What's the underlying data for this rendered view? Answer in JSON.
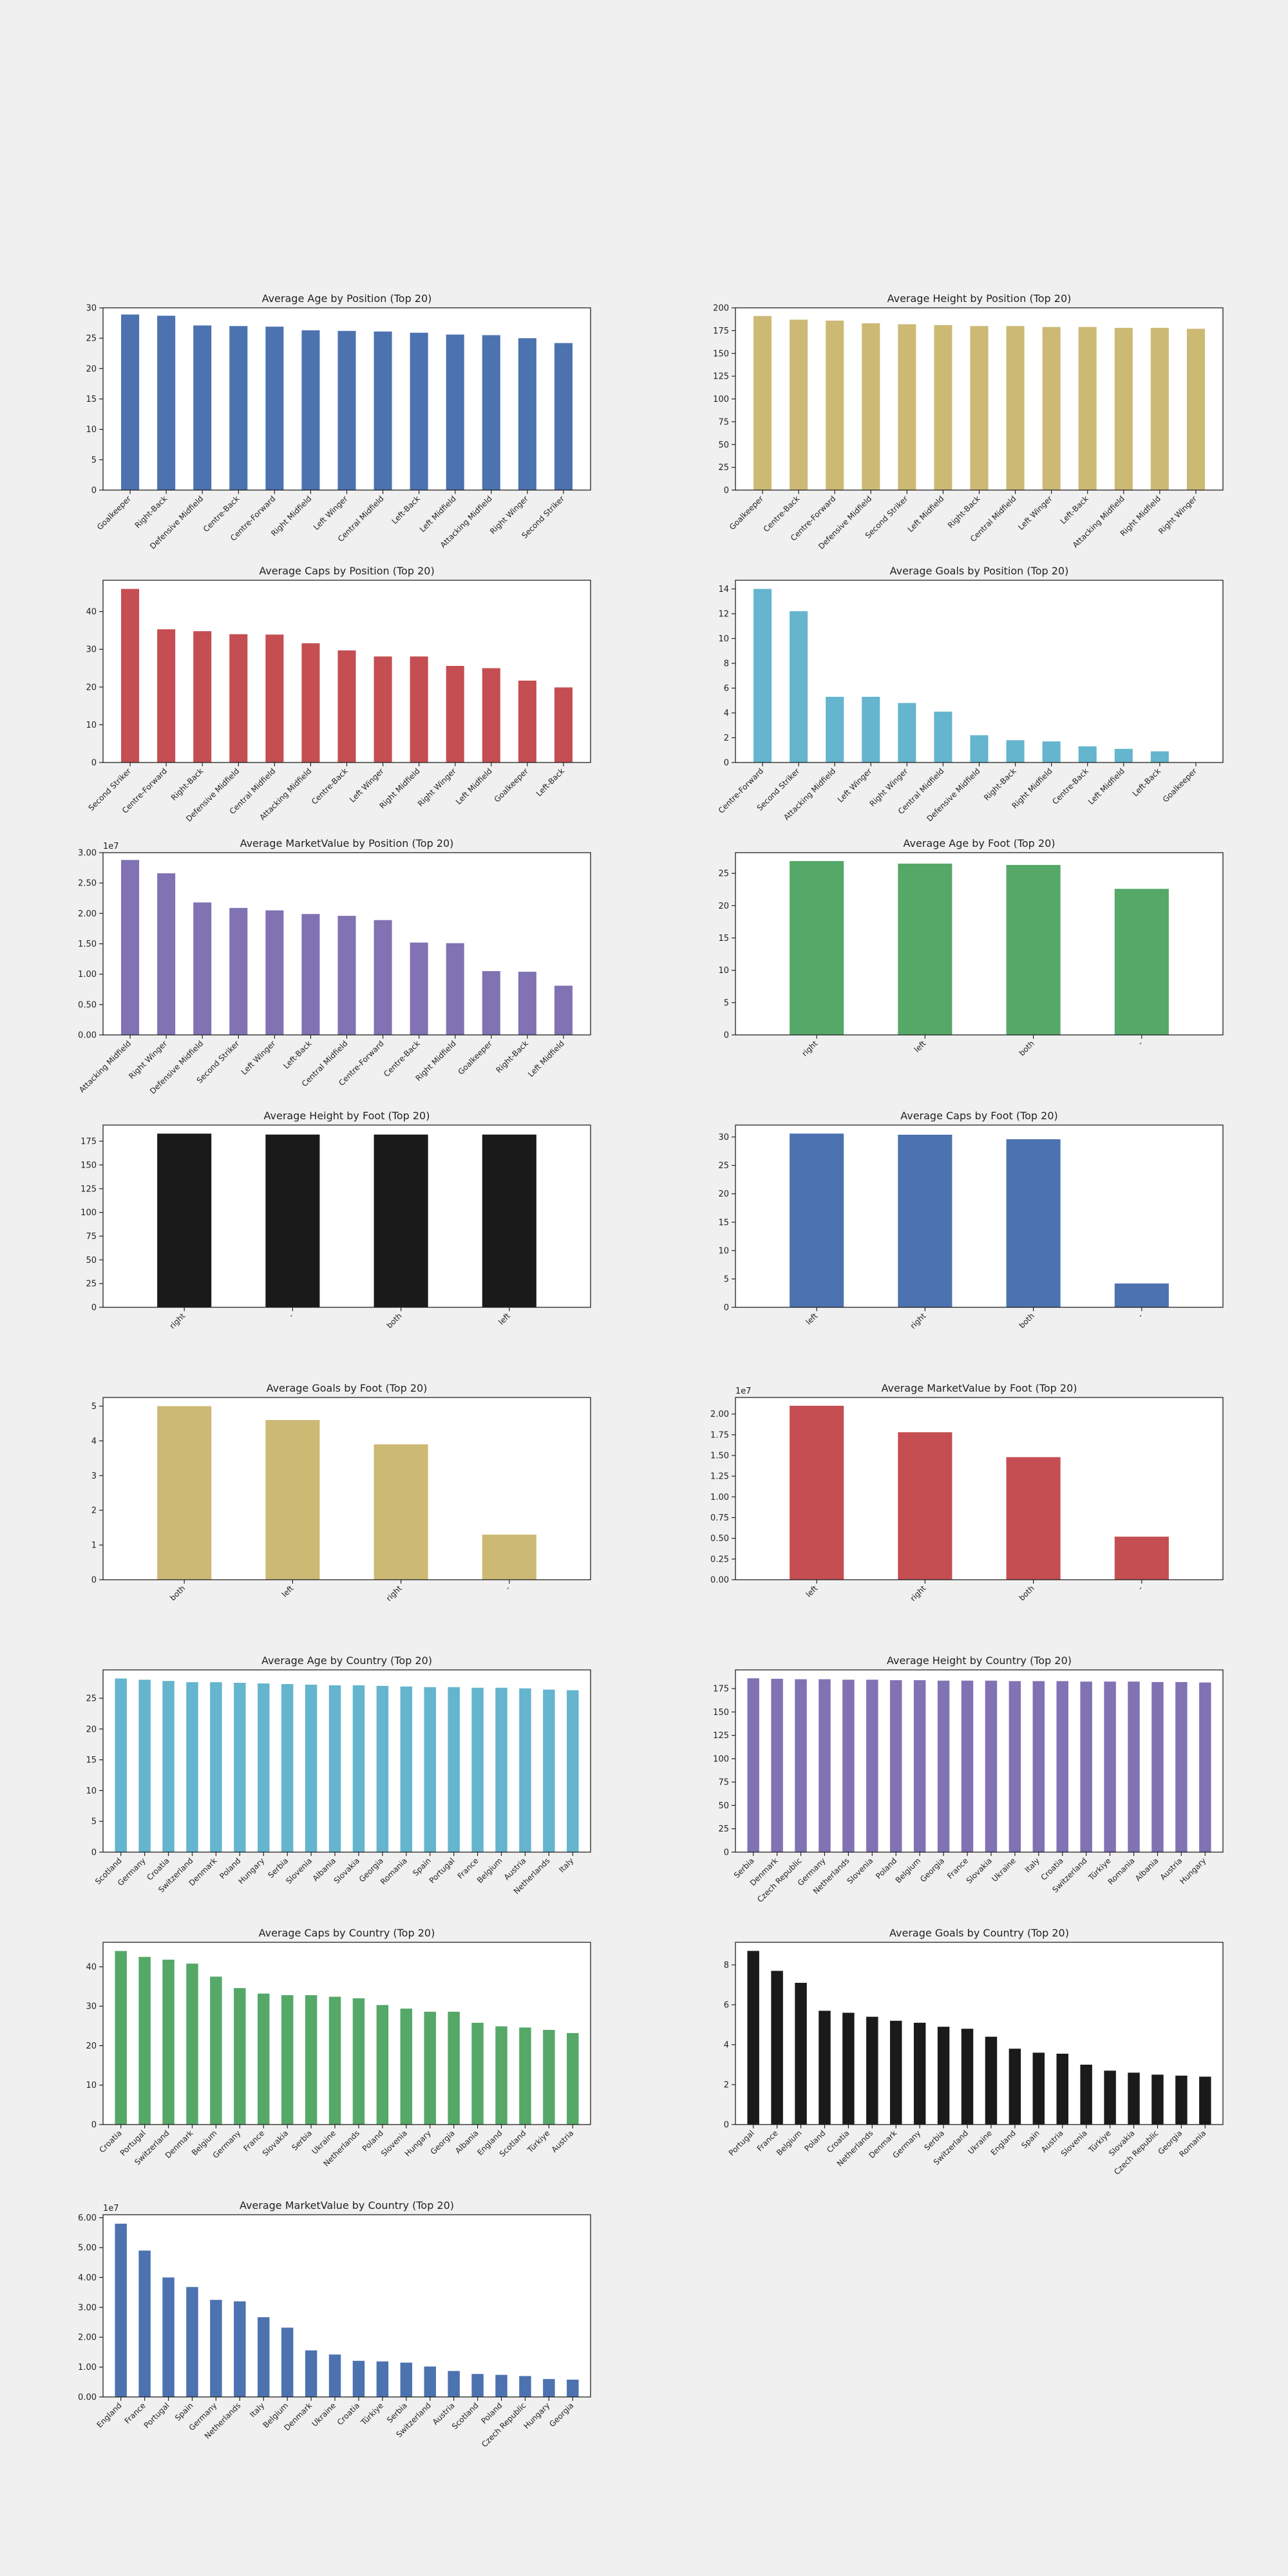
{
  "colors": {
    "blue": "#4c72b0",
    "gold": "#ccb974",
    "red": "#c44e52",
    "cyan": "#64b5cd",
    "purple": "#8172b3",
    "green": "#55a868",
    "black": "#1a1a1a"
  },
  "chart_data": [
    {
      "type": "bar",
      "title": "Average Age by Position (Top 20)",
      "categories": [
        "Goalkeeper",
        "Right-Back",
        "Defensive Midfield",
        "Centre-Back",
        "Centre-Forward",
        "Right Midfield",
        "Left Winger",
        "Central Midfield",
        "Left-Back",
        "Left Midfield",
        "Attacking Midfield",
        "Right Winger",
        "Second Striker"
      ],
      "values": [
        28.9,
        28.7,
        27.1,
        27.0,
        26.9,
        26.3,
        26.2,
        26.1,
        25.9,
        25.6,
        25.5,
        25.0,
        24.2
      ],
      "ylim": [
        0,
        30
      ],
      "yticks": [
        0,
        5,
        10,
        15,
        20,
        25,
        30
      ],
      "yoffset": "",
      "color": "blue"
    },
    {
      "type": "bar",
      "title": "Average Height by Position (Top 20)",
      "categories": [
        "Goalkeeper",
        "Centre-Back",
        "Centre-Forward",
        "Defensive Midfield",
        "Second Striker",
        "Left Midfield",
        "Right-Back",
        "Central Midfield",
        "Left Winger",
        "Left-Back",
        "Attacking Midfield",
        "Right Midfield",
        "Right Winger"
      ],
      "values": [
        191,
        187,
        186,
        183,
        182,
        181,
        180,
        180,
        179,
        179,
        178,
        178,
        177
      ],
      "ylim": [
        0,
        200
      ],
      "yticks": [
        0,
        25,
        50,
        75,
        100,
        125,
        150,
        175,
        200
      ],
      "yoffset": "",
      "color": "gold"
    },
    {
      "type": "bar",
      "title": "Average Caps by Position (Top 20)",
      "categories": [
        "Second Striker",
        "Centre-Forward",
        "Right-Back",
        "Defensive Midfield",
        "Central Midfield",
        "Attacking Midfield",
        "Centre-Back",
        "Left Winger",
        "Right Midfield",
        "Right Winger",
        "Left Midfield",
        "Goalkeeper",
        "Left-Back"
      ],
      "values": [
        46,
        35.3,
        34.8,
        34,
        33.9,
        31.6,
        29.7,
        28.1,
        28.1,
        25.6,
        25,
        21.7,
        19.9
      ],
      "ylim": [
        0,
        48.3
      ],
      "yticks": [
        0,
        10,
        20,
        30,
        40
      ],
      "yoffset": "",
      "color": "red"
    },
    {
      "type": "bar",
      "title": "Average Goals by Position (Top 20)",
      "categories": [
        "Centre-Forward",
        "Second Striker",
        "Attacking Midfield",
        "Left Winger",
        "Right Winger",
        "Central Midfield",
        "Defensive Midfield",
        "Right-Back",
        "Right Midfield",
        "Centre-Back",
        "Left Midfield",
        "Left-Back",
        "Goalkeeper"
      ],
      "values": [
        14,
        12.2,
        5.3,
        5.3,
        4.8,
        4.1,
        2.2,
        1.8,
        1.7,
        1.3,
        1.1,
        0.9,
        0
      ],
      "ylim": [
        0,
        14.7
      ],
      "yticks": [
        0,
        2,
        4,
        6,
        8,
        10,
        12,
        14
      ],
      "yoffset": "",
      "color": "cyan"
    },
    {
      "type": "bar",
      "title": "Average MarketValue by Position (Top 20)",
      "categories": [
        "Attacking Midfield",
        "Right Winger",
        "Defensive Midfield",
        "Second Striker",
        "Left Winger",
        "Left-Back",
        "Central Midfield",
        "Centre-Forward",
        "Centre-Back",
        "Right Midfield",
        "Goalkeeper",
        "Right-Back",
        "Left Midfield"
      ],
      "values": [
        28800000,
        26600000,
        21800000,
        20900000,
        20500000,
        19900000,
        19600000,
        18900000,
        15200000,
        15100000,
        10500000,
        10400000,
        8100000
      ],
      "ylim": [
        0,
        30000000
      ],
      "yticks": [
        0,
        5000000,
        10000000,
        15000000,
        20000000,
        25000000,
        30000000
      ],
      "yoffset": "1e7",
      "color": "purple"
    },
    {
      "type": "bar",
      "title": "Average Age by Foot (Top 20)",
      "categories": [
        "right",
        "left",
        "both",
        "-"
      ],
      "values": [
        26.9,
        26.5,
        26.3,
        22.6
      ],
      "ylim": [
        0,
        28.2
      ],
      "yticks": [
        0,
        5,
        10,
        15,
        20,
        25
      ],
      "yoffset": "",
      "color": "green"
    },
    {
      "type": "bar",
      "title": "Average Height by Foot (Top 20)",
      "categories": [
        "right",
        "-",
        "both",
        "left"
      ],
      "values": [
        183,
        182,
        182,
        182
      ],
      "ylim": [
        0,
        192
      ],
      "yticks": [
        0,
        25,
        50,
        75,
        100,
        125,
        150,
        175
      ],
      "yoffset": "",
      "color": "black"
    },
    {
      "type": "bar",
      "title": "Average Caps by Foot (Top 20)",
      "categories": [
        "left",
        "right",
        "both",
        "-"
      ],
      "values": [
        30.6,
        30.4,
        29.6,
        4.2
      ],
      "ylim": [
        0,
        32.1
      ],
      "yticks": [
        0,
        5,
        10,
        15,
        20,
        25,
        30
      ],
      "yoffset": "",
      "color": "blue"
    },
    {
      "type": "bar",
      "title": "Average Goals by Foot (Top 20)",
      "categories": [
        "both",
        "left",
        "right",
        "-"
      ],
      "values": [
        5.0,
        4.6,
        3.9,
        1.3
      ],
      "ylim": [
        0,
        5.25
      ],
      "yticks": [
        0,
        1,
        2,
        3,
        4,
        5
      ],
      "yoffset": "",
      "color": "gold"
    },
    {
      "type": "bar",
      "title": "Average MarketValue by Foot (Top 20)",
      "categories": [
        "left",
        "right",
        "both",
        "-"
      ],
      "values": [
        21000000,
        17800000,
        14800000,
        5200000
      ],
      "ylim": [
        0,
        22000000
      ],
      "yticks": [
        0,
        2500000,
        5000000,
        7500000,
        10000000,
        12500000,
        15000000,
        17500000,
        20000000
      ],
      "yoffset": "1e7",
      "color": "red"
    },
    {
      "type": "bar",
      "title": "Average Age by Country (Top 20)",
      "categories": [
        "Scotland",
        "Germany",
        "Croatia",
        "Switzerland",
        "Denmark",
        "Poland",
        "Hungary",
        "Serbia",
        "Slovenia",
        "Albania",
        "Slovakia",
        "Georgia",
        "Romania",
        "Spain",
        "Portugal",
        "France",
        "Belgium",
        "Austria",
        "Netherlands",
        "Italy"
      ],
      "values": [
        28.2,
        28.0,
        27.8,
        27.6,
        27.6,
        27.5,
        27.4,
        27.3,
        27.2,
        27.1,
        27.1,
        27.0,
        26.9,
        26.8,
        26.8,
        26.7,
        26.7,
        26.6,
        26.4,
        26.3
      ],
      "ylim": [
        0,
        29.6
      ],
      "yticks": [
        0,
        5,
        10,
        15,
        20,
        25
      ],
      "yoffset": "",
      "color": "cyan"
    },
    {
      "type": "bar",
      "title": "Average Height by Country (Top 20)",
      "categories": [
        "Serbia",
        "Denmark",
        "Czech Republic",
        "Germany",
        "Netherlands",
        "Slovenia",
        "Poland",
        "Belgium",
        "Georgia",
        "France",
        "Slovakia",
        "Ukraine",
        "Italy",
        "Croatia",
        "Switzerland",
        "Türkiye",
        "Romania",
        "Albania",
        "Austria",
        "Hungary"
      ],
      "values": [
        186,
        185.5,
        185,
        185,
        184.5,
        184.5,
        184,
        184,
        183.5,
        183.5,
        183.5,
        183,
        183,
        183,
        182.5,
        182.5,
        182.5,
        182,
        182,
        181.5
      ],
      "ylim": [
        0,
        195
      ],
      "yticks": [
        0,
        25,
        50,
        75,
        100,
        125,
        150,
        175
      ],
      "yoffset": "",
      "color": "purple"
    },
    {
      "type": "bar",
      "title": "Average Caps by Country (Top 20)",
      "categories": [
        "Croatia",
        "Portugal",
        "Switzerland",
        "Denmark",
        "Belgium",
        "Germany",
        "France",
        "Slovakia",
        "Serbia",
        "Ukraine",
        "Netherlands",
        "Poland",
        "Slovenia",
        "Hungary",
        "Georgia",
        "Albania",
        "England",
        "Scotland",
        "Türkiye",
        "Austria"
      ],
      "values": [
        44,
        42.5,
        41.8,
        40.8,
        37.5,
        34.6,
        33.2,
        32.8,
        32.8,
        32.4,
        32,
        30.3,
        29.4,
        28.6,
        28.6,
        25.8,
        24.9,
        24.6,
        24,
        23.2
      ],
      "ylim": [
        0,
        46.2
      ],
      "yticks": [
        0,
        10,
        20,
        30,
        40
      ],
      "yoffset": "",
      "color": "green"
    },
    {
      "type": "bar",
      "title": "Average Goals by Country (Top 20)",
      "categories": [
        "Portugal",
        "France",
        "Belgium",
        "Poland",
        "Croatia",
        "Netherlands",
        "Denmark",
        "Germany",
        "Serbia",
        "Switzerland",
        "Ukraine",
        "England",
        "Spain",
        "Austria",
        "Slovenia",
        "Türkiye",
        "Slovakia",
        "Czech Republic",
        "Georgia",
        "Romania"
      ],
      "values": [
        8.7,
        7.7,
        7.1,
        5.7,
        5.6,
        5.4,
        5.2,
        5.1,
        4.9,
        4.8,
        4.4,
        3.8,
        3.6,
        3.55,
        3.0,
        2.7,
        2.6,
        2.5,
        2.45,
        2.4
      ],
      "ylim": [
        0,
        9.13
      ],
      "yticks": [
        0,
        2,
        4,
        6,
        8
      ],
      "yoffset": "",
      "color": "black"
    },
    {
      "type": "bar",
      "title": "Average MarketValue by Country (Top 20)",
      "categories": [
        "England",
        "France",
        "Portugal",
        "Spain",
        "Germany",
        "Netherlands",
        "Italy",
        "Belgium",
        "Denmark",
        "Ukraine",
        "Croatia",
        "Türkiye",
        "Serbia",
        "Switzerland",
        "Austria",
        "Scotland",
        "Poland",
        "Czech Republic",
        "Hungary",
        "Georgia"
      ],
      "values": [
        58000000,
        49000000,
        40000000,
        36800000,
        32500000,
        32000000,
        26700000,
        23200000,
        15600000,
        14200000,
        12100000,
        11900000,
        11500000,
        10200000,
        8700000,
        7700000,
        7400000,
        7000000,
        6000000,
        5800000
      ],
      "ylim": [
        0,
        61000000
      ],
      "yticks": [
        0,
        10000000,
        20000000,
        30000000,
        40000000,
        50000000,
        60000000
      ],
      "yoffset": "1e7",
      "color": "blue"
    }
  ]
}
